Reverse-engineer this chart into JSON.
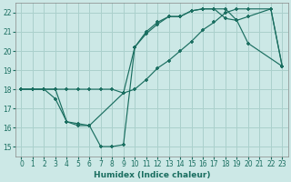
{
  "xlabel": "Humidex (Indice chaleur)",
  "bg_color": "#cce8e6",
  "grid_color": "#aad0cc",
  "line_color": "#1a6e60",
  "xlim": [
    -0.5,
    23.5
  ],
  "ylim": [
    14.5,
    22.5
  ],
  "xticks": [
    0,
    1,
    2,
    3,
    4,
    5,
    6,
    7,
    8,
    9,
    10,
    11,
    12,
    13,
    14,
    15,
    16,
    17,
    18,
    19,
    20,
    21,
    22,
    23
  ],
  "yticks": [
    15,
    16,
    17,
    18,
    19,
    20,
    21,
    22
  ],
  "curve1_x": [
    0,
    1,
    2,
    3,
    4,
    5,
    6,
    7,
    8,
    9,
    10,
    11,
    12,
    13,
    14,
    15,
    16,
    17,
    18,
    19,
    20,
    22,
    23
  ],
  "curve1_y": [
    18,
    18,
    18,
    18,
    16.3,
    16.2,
    16.1,
    15.0,
    15.0,
    15.1,
    20.2,
    21.0,
    21.5,
    21.8,
    21.8,
    22.1,
    22.2,
    22.2,
    22.2,
    21.6,
    21.8,
    22.2,
    19.2
  ],
  "curve2_x": [
    0,
    2,
    3,
    4,
    5,
    6,
    7,
    8,
    9,
    10,
    11,
    12,
    13,
    14,
    15,
    16,
    17,
    18,
    19,
    20,
    22,
    23
  ],
  "curve2_y": [
    18,
    18,
    18,
    18.0,
    18.0,
    18.0,
    18.0,
    18.0,
    17.8,
    18.0,
    18.5,
    19.1,
    19.5,
    20.0,
    20.5,
    21.1,
    21.5,
    22.0,
    22.2,
    22.2,
    22.2,
    19.2
  ],
  "curve3_x": [
    0,
    1,
    2,
    3,
    4,
    5,
    6,
    9,
    10,
    11,
    12,
    13,
    14,
    15,
    16,
    17,
    18,
    19,
    20,
    23
  ],
  "curve3_y": [
    18,
    18,
    18,
    17.5,
    16.3,
    16.1,
    16.1,
    17.8,
    20.2,
    20.9,
    21.4,
    21.8,
    21.8,
    22.1,
    22.2,
    22.2,
    21.7,
    21.6,
    20.4,
    19.2
  ]
}
